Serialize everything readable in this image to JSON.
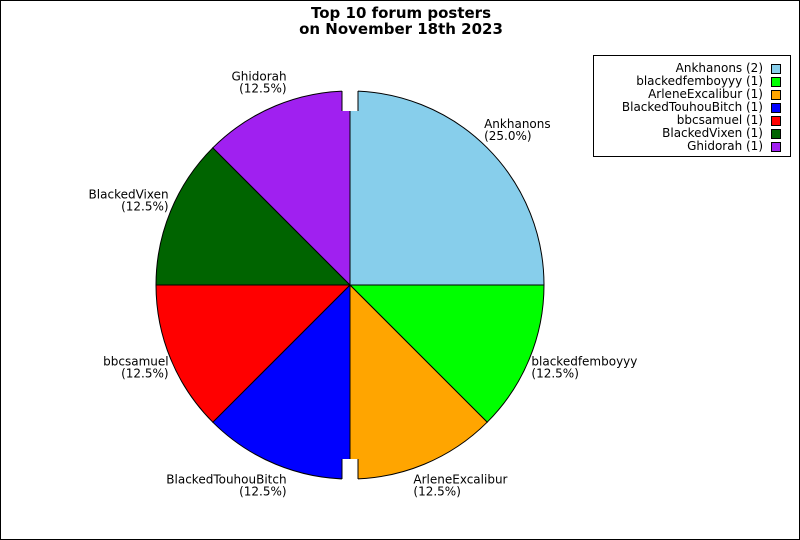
{
  "chart_data": {
    "type": "pie",
    "title_lines": [
      "Top 10 forum posters",
      "on November 18th 2023"
    ],
    "slices": [
      {
        "name": "Ankhanons",
        "count": 2,
        "percent_label": "(25.0%)",
        "legend_label": "Ankhanons (2)",
        "color": "#87CEEB"
      },
      {
        "name": "blackedfemboyyy",
        "count": 1,
        "percent_label": "(12.5%)",
        "legend_label": "blackedfemboyyy (1)",
        "color": "#00FF00"
      },
      {
        "name": "ArleneExcalibur",
        "count": 1,
        "percent_label": "(12.5%)",
        "legend_label": "ArleneExcalibur (1)",
        "color": "#FFA500"
      },
      {
        "name": "BlackedTouhouBitch",
        "count": 1,
        "percent_label": "(12.5%)",
        "legend_label": "BlackedTouhouBitch (1)",
        "color": "#0000FF"
      },
      {
        "name": "bbcsamuel",
        "count": 1,
        "percent_label": "(12.5%)",
        "legend_label": "bbcsamuel (1)",
        "color": "#FF0000"
      },
      {
        "name": "BlackedVixen",
        "count": 1,
        "percent_label": "(12.5%)",
        "legend_label": "BlackedVixen (1)",
        "color": "#006400"
      },
      {
        "name": "Ghidorah",
        "count": 1,
        "percent_label": "(12.5%)",
        "legend_label": "Ghidorah (1)",
        "color": "#A020F0"
      }
    ],
    "legend_position": "top-right"
  }
}
